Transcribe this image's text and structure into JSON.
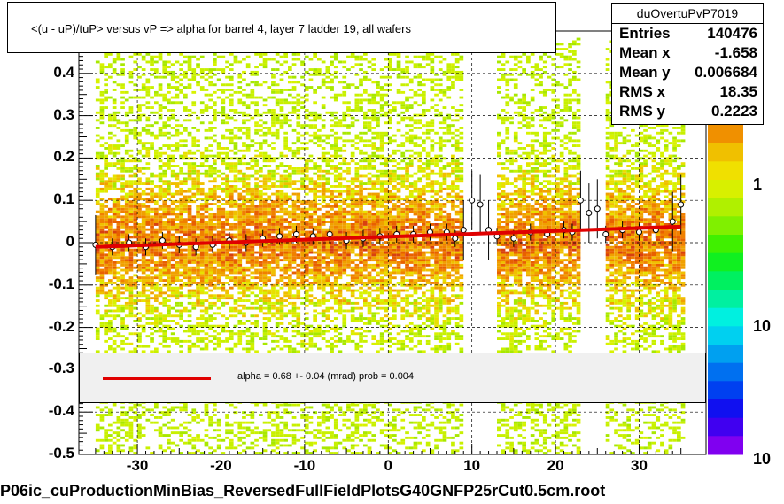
{
  "title": "<(u - uP)/tuP>  versus   vP => alpha for barrel 4, layer 7 ladder 19, all wafers",
  "stats": {
    "name": "duOvertuPvP7019",
    "rows": [
      {
        "label": "Entries",
        "value": "140476"
      },
      {
        "label": "Mean x",
        "value": "-1.658"
      },
      {
        "label": "Mean y",
        "value": "0.006684"
      },
      {
        "label": "RMS x",
        "value": "18.35"
      },
      {
        "label": "RMS y",
        "value": "0.2223"
      }
    ]
  },
  "fit_label": "alpha =    0.68 +-  0.04 (mrad) prob = 0.004",
  "footer": "P06ic_cuProductionMinBias_ReversedFullFieldPlotsG40GNFP25rCut0.5cm.root",
  "colors": {
    "fit": "#e00000",
    "background": "#ffffff"
  },
  "chart_data": {
    "type": "heatmap",
    "title": "<(u - uP)/tuP>  versus   vP => alpha for barrel 4, layer 7 ladder 19, all wafers",
    "xlabel": "",
    "ylabel": "",
    "xlim": [
      -37,
      38
    ],
    "ylim": [
      -0.5,
      0.5
    ],
    "xticks": [
      -30,
      -20,
      -10,
      0,
      10,
      20,
      30
    ],
    "yticks": [
      -0.5,
      -0.4,
      -0.3,
      -0.2,
      -0.1,
      0,
      0.1,
      0.2,
      0.3,
      0.4
    ],
    "ytick_labels": [
      "-0.5",
      "-0.4",
      "-0.3",
      "-0.2",
      "-0.1",
      "0",
      "0.1",
      "0.2",
      "0.3",
      "0.4"
    ],
    "colorbar_labels": [
      "1",
      "10"
    ],
    "grid": true,
    "occupied_x_ranges": [
      [
        -35,
        8.5
      ],
      [
        13,
        22.5
      ],
      [
        26,
        35
      ]
    ],
    "profile": {
      "x": [
        -35,
        -33,
        -31,
        -29,
        -27,
        -25,
        -23,
        -21,
        -19,
        -17,
        -15,
        -13,
        -11,
        -9,
        -7,
        -5,
        -3,
        -1,
        1,
        3,
        5,
        7,
        8,
        9,
        10,
        11,
        12,
        13,
        15,
        17,
        19,
        21,
        22,
        23,
        24,
        25,
        26,
        28,
        30,
        32,
        34,
        35
      ],
      "y": [
        -0.005,
        -0.01,
        0.0,
        -0.01,
        0.005,
        -0.005,
        -0.01,
        -0.005,
        0.005,
        0.0,
        0.01,
        0.015,
        0.02,
        0.015,
        0.02,
        0.005,
        0.01,
        0.015,
        0.02,
        0.02,
        0.025,
        0.025,
        0.01,
        0.03,
        0.1,
        0.09,
        0.03,
        0.015,
        0.01,
        0.025,
        0.02,
        0.03,
        0.025,
        0.1,
        0.07,
        0.08,
        0.02,
        0.03,
        0.025,
        0.03,
        0.05,
        0.09
      ]
    },
    "fit": {
      "x": [
        -35,
        35
      ],
      "y": [
        -0.01,
        0.038
      ]
    }
  }
}
